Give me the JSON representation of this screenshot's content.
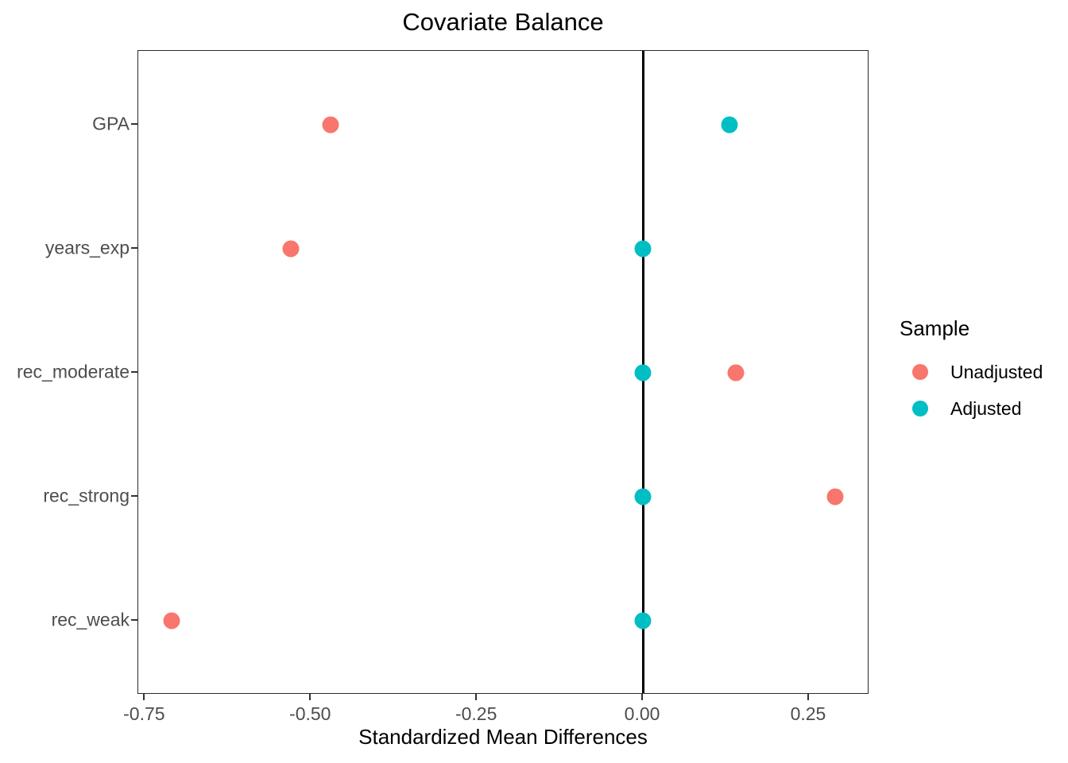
{
  "chart_data": {
    "type": "scatter",
    "title": "Covariate Balance",
    "xlabel": "Standardized Mean Differences",
    "ylabel": "",
    "categories": [
      "GPA",
      "years_exp",
      "rec_moderate",
      "rec_strong",
      "rec_weak"
    ],
    "series": [
      {
        "name": "Unadjusted",
        "color": "#F8766D",
        "values": [
          -0.47,
          -0.53,
          0.14,
          0.29,
          -0.71
        ]
      },
      {
        "name": "Adjusted",
        "color": "#00BFC4",
        "values": [
          0.13,
          0.0,
          0.0,
          0.0,
          0.0
        ]
      }
    ],
    "x_ticks": [
      {
        "value": -0.75,
        "label": "-0.75"
      },
      {
        "value": -0.5,
        "label": "-0.50"
      },
      {
        "value": -0.25,
        "label": "-0.25"
      },
      {
        "value": 0.0,
        "label": "0.00"
      },
      {
        "value": 0.25,
        "label": "0.25"
      }
    ],
    "xlim": [
      -0.76,
      0.341
    ],
    "reference_line_x": 0.0,
    "grid": false,
    "legend": {
      "title": "Sample",
      "position": "right"
    },
    "colors": {
      "unadjusted": "#F8766D",
      "adjusted": "#00BFC4",
      "axis_text": "#4d4d4d",
      "panel_border": "#2b2b2b",
      "reference_line": "#000000"
    }
  }
}
